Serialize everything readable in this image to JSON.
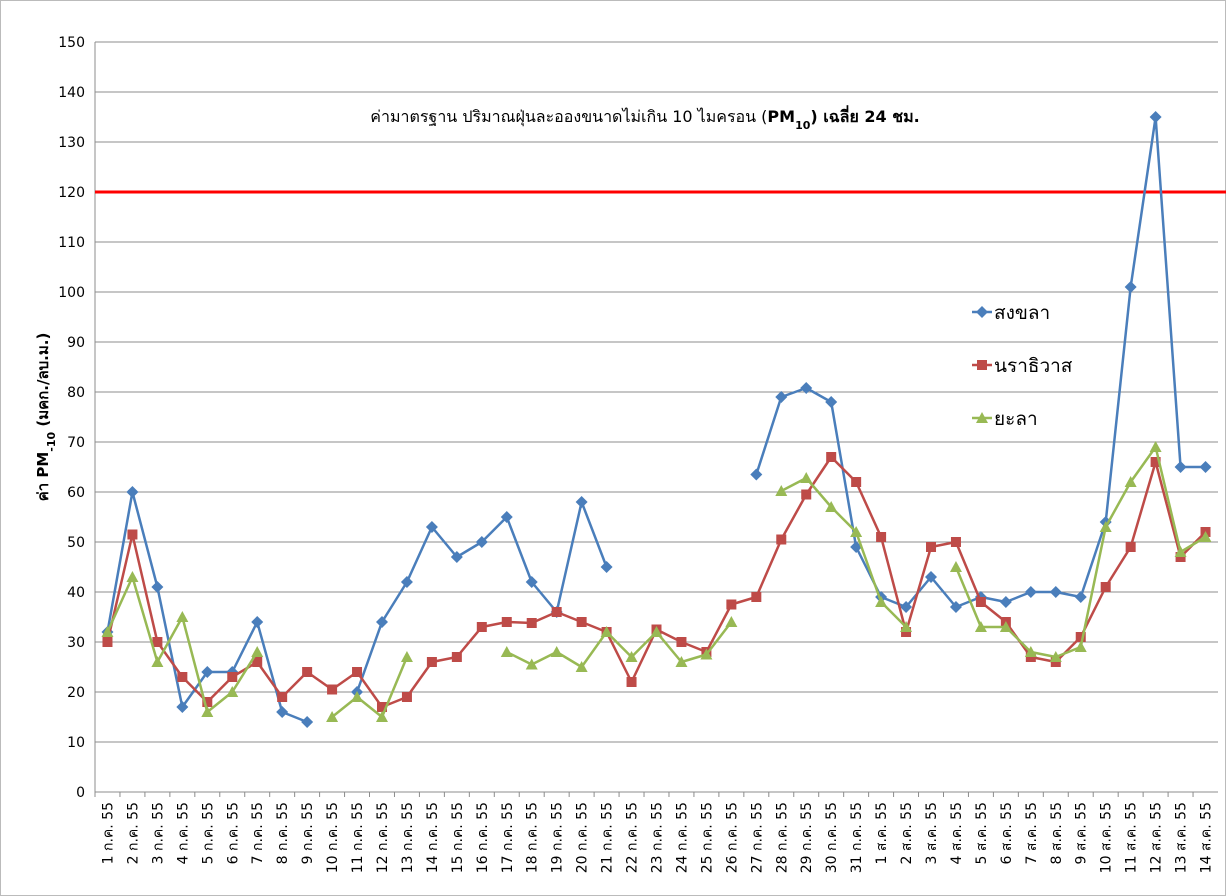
{
  "chart_data": {
    "type": "line",
    "annotation_parts": [
      "ค่ามาตรฐาน ปริมาณฝุ่นละอองขนาดไม่เกิน 10 ไมครอน (",
      "PM",
      "10",
      ") เฉลี่ย 24 ชม."
    ],
    "y_label_parts": [
      "ค่า PM",
      "-10",
      " (มคก./ลบ.ม.)"
    ],
    "categories": [
      "1 ก.ค. 55",
      "2 ก.ค. 55",
      "3 ก.ค. 55",
      "4 ก.ค. 55",
      "5 ก.ค. 55",
      "6 ก.ค. 55",
      "7 ก.ค. 55",
      "8 ก.ค. 55",
      "9 ก.ค. 55",
      "10 ก.ค. 55",
      "11 ก.ค. 55",
      "12 ก.ค. 55",
      "13 ก.ค. 55",
      "14 ก.ค. 55",
      "15 ก.ค. 55",
      "16 ก.ค. 55",
      "17 ก.ค. 55",
      "18 ก.ค. 55",
      "19 ก.ค. 55",
      "20 ก.ค. 55",
      "21 ก.ค. 55",
      "22 ก.ค. 55",
      "23 ก.ค. 55",
      "24 ก.ค. 55",
      "25 ก.ค. 55",
      "26 ก.ค. 55",
      "27 ก.ค. 55",
      "28 ก.ค. 55",
      "29 ก.ค. 55",
      "30 ก.ค. 55",
      "31 ก.ค. 55",
      "1 ส.ค. 55",
      "2 ส.ค. 55",
      "3 ส.ค. 55",
      "4 ส.ค. 55",
      "5 ส.ค. 55",
      "6 ส.ค. 55",
      "7 ส.ค. 55",
      "8 ส.ค. 55",
      "9 ส.ค. 55",
      "10 ส.ค. 55",
      "11 ส.ค. 55",
      "12 ส.ค. 55",
      "13 ส.ค. 55",
      "14 ส.ค. 55"
    ],
    "series": [
      {
        "name": "สงขลา",
        "color": "#4a7ebb",
        "marker": "diamond",
        "values": [
          32,
          60,
          41,
          17,
          24,
          24,
          34,
          16,
          14,
          null,
          20,
          34,
          42,
          53,
          47,
          50,
          55,
          42,
          36,
          58,
          45,
          null,
          null,
          null,
          null,
          null,
          63.5,
          79,
          80.8,
          78,
          49,
          39,
          37,
          43,
          37,
          39,
          38,
          40,
          40,
          39,
          54,
          101,
          135,
          65,
          65
        ]
      },
      {
        "name": "นราธิวาส",
        "color": "#be4b48",
        "marker": "square",
        "values": [
          30,
          51.5,
          30,
          23,
          18,
          23,
          26,
          19,
          24,
          20.5,
          24,
          17,
          19,
          26,
          27,
          33,
          34,
          33.8,
          36,
          34,
          32,
          22,
          32.5,
          30,
          28,
          37.5,
          39,
          50.5,
          59.5,
          67,
          62,
          51,
          32,
          49,
          50,
          38,
          34,
          27,
          26,
          31,
          41,
          49,
          66,
          47,
          52
        ]
      },
      {
        "name": "ยะลา",
        "color": "#98b954",
        "marker": "triangle",
        "values": [
          32,
          43,
          26,
          35,
          16,
          20,
          28,
          null,
          null,
          15,
          19,
          15,
          27,
          null,
          null,
          null,
          28,
          25.5,
          28,
          25,
          32,
          27,
          32,
          26,
          27.5,
          34,
          null,
          60.2,
          62.8,
          57,
          52,
          38,
          33,
          null,
          45,
          33,
          33,
          28,
          27,
          29,
          53,
          62,
          69,
          48,
          51
        ]
      }
    ],
    "reference_line": {
      "value": 120,
      "color": "#ff0000"
    },
    "ylim": [
      0,
      150
    ],
    "yticks": [
      0,
      10,
      20,
      30,
      40,
      50,
      60,
      70,
      80,
      90,
      100,
      110,
      120,
      130,
      140,
      150
    ],
    "grid": true,
    "legend": "right"
  }
}
